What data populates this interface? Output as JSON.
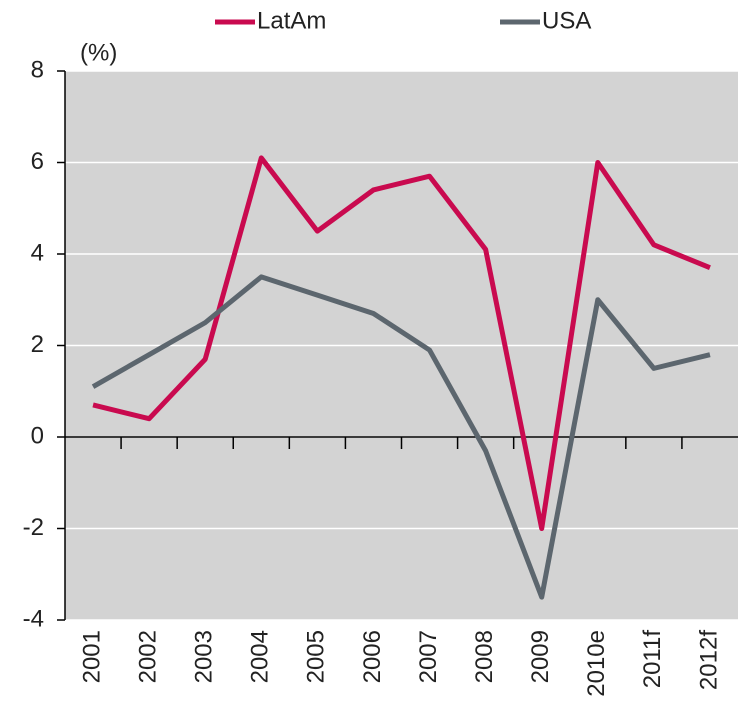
{
  "chart_data": {
    "type": "line",
    "y_label": "(%)",
    "categories": [
      "2001",
      "2002",
      "2003",
      "2004",
      "2005",
      "2006",
      "2007",
      "2008",
      "2009",
      "2010e",
      "2011f",
      "2012f"
    ],
    "series": [
      {
        "name": "LatAm",
        "color": "#c90a4f",
        "values": [
          0.7,
          0.4,
          1.7,
          6.1,
          4.5,
          5.4,
          5.7,
          4.1,
          -2.0,
          6.0,
          4.2,
          3.7
        ]
      },
      {
        "name": "USA",
        "color": "#5c666e",
        "values": [
          1.1,
          1.8,
          2.5,
          3.5,
          3.1,
          2.7,
          1.9,
          -0.3,
          -3.5,
          3.0,
          1.5,
          1.8
        ]
      }
    ],
    "ylim": [
      -4,
      8
    ],
    "yticks": [
      -4,
      -2,
      0,
      2,
      4,
      6,
      8
    ],
    "grid": true,
    "legend": "top"
  }
}
